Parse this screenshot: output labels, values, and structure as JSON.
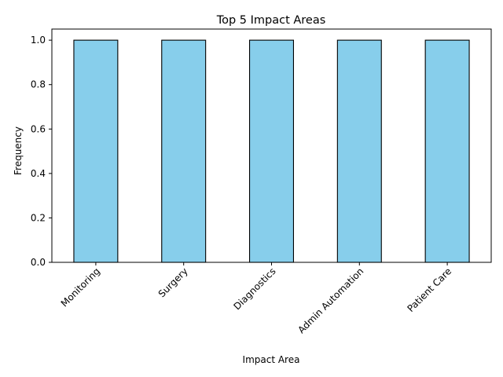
{
  "chart_data": {
    "type": "bar",
    "title": "Top 5 Impact Areas",
    "xlabel": "Impact Area",
    "ylabel": "Frequency",
    "categories": [
      "Monitoring",
      "Surgery",
      "Diagnostics",
      "Admin Automation",
      "Patient Care"
    ],
    "values": [
      1,
      1,
      1,
      1,
      1
    ],
    "ylim": [
      0,
      1.05
    ],
    "yticks": [
      0.0,
      0.2,
      0.4,
      0.6,
      0.8,
      1.0
    ],
    "ytick_labels": [
      "0.0",
      "0.2",
      "0.4",
      "0.6",
      "0.8",
      "1.0"
    ],
    "x_tick_rotation_deg": 45,
    "grid": false,
    "legend": "none",
    "bar_color": "#87CEEB",
    "edge_color": "#000000"
  }
}
